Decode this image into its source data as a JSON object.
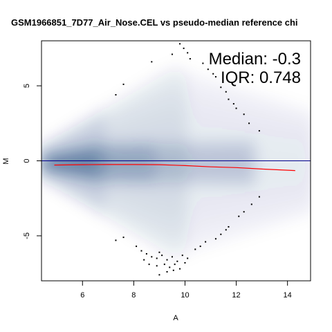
{
  "chart_data": {
    "type": "scatter",
    "title": "GSM1966851_7D77_Air_Nose.CEL vs pseudo-median reference chi",
    "xlabel": "A",
    "ylabel": "M",
    "xlim": [
      4.4,
      14.9
    ],
    "ylim": [
      -8.0,
      8.0
    ],
    "x_ticks": [
      6,
      8,
      10,
      12,
      14
    ],
    "y_ticks": [
      -5,
      0,
      5
    ],
    "annotations": {
      "median_text": "Median: -0.3",
      "iqr_text": "IQR: 0.748"
    },
    "reference_line": {
      "y": 0,
      "color": "#00008B"
    },
    "loess_curve": {
      "color": "#ff0000",
      "x": [
        4.9,
        6.0,
        7.0,
        8.0,
        9.0,
        10.0,
        11.0,
        12.0,
        13.0,
        14.3
      ],
      "y": [
        -0.28,
        -0.26,
        -0.25,
        -0.25,
        -0.26,
        -0.32,
        -0.4,
        -0.45,
        -0.55,
        -0.65
      ]
    },
    "density_color": "#08306b",
    "outlier_points": [
      [
        9.8,
        7.8
      ],
      [
        9.95,
        7.5
      ],
      [
        10.1,
        7.2
      ],
      [
        9.5,
        7.1
      ],
      [
        10.2,
        6.8
      ],
      [
        8.7,
        6.6
      ],
      [
        10.7,
        6.5
      ],
      [
        10.9,
        6.1
      ],
      [
        11.1,
        5.8
      ],
      [
        11.2,
        5.6
      ],
      [
        7.6,
        5.1
      ],
      [
        11.4,
        4.9
      ],
      [
        11.6,
        4.6
      ],
      [
        7.3,
        4.4
      ],
      [
        11.7,
        4.1
      ],
      [
        11.9,
        3.8
      ],
      [
        12.0,
        3.5
      ],
      [
        12.3,
        3.1
      ],
      [
        12.5,
        2.5
      ],
      [
        12.9,
        2.0
      ],
      [
        12.9,
        -2.4
      ],
      [
        12.6,
        -2.9
      ],
      [
        12.3,
        -3.4
      ],
      [
        12.1,
        -3.7
      ],
      [
        11.7,
        -4.4
      ],
      [
        11.6,
        -4.6
      ],
      [
        11.4,
        -4.9
      ],
      [
        11.2,
        -5.2
      ],
      [
        7.6,
        -5.1
      ],
      [
        7.3,
        -5.3
      ],
      [
        10.8,
        -5.4
      ],
      [
        10.6,
        -5.7
      ],
      [
        10.4,
        -5.9
      ],
      [
        8.1,
        -5.7
      ],
      [
        8.3,
        -6.0
      ],
      [
        8.5,
        -6.2
      ],
      [
        8.7,
        -6.4
      ],
      [
        8.9,
        -6.5
      ],
      [
        9.1,
        -6.3
      ],
      [
        9.3,
        -6.6
      ],
      [
        9.5,
        -6.4
      ],
      [
        9.7,
        -6.7
      ],
      [
        9.9,
        -6.3
      ],
      [
        10.1,
        -6.5
      ],
      [
        8.6,
        -6.9
      ],
      [
        8.9,
        -7.0
      ],
      [
        9.2,
        -6.9
      ],
      [
        9.4,
        -7.1
      ],
      [
        9.6,
        -6.9
      ],
      [
        9.8,
        -7.2
      ],
      [
        8.4,
        -6.6
      ],
      [
        9.0,
        -6.1
      ],
      [
        9.3,
        -7.4
      ],
      [
        9.0,
        -7.6
      ],
      [
        10.0,
        -6.8
      ],
      [
        9.55,
        -7.3
      ]
    ]
  }
}
